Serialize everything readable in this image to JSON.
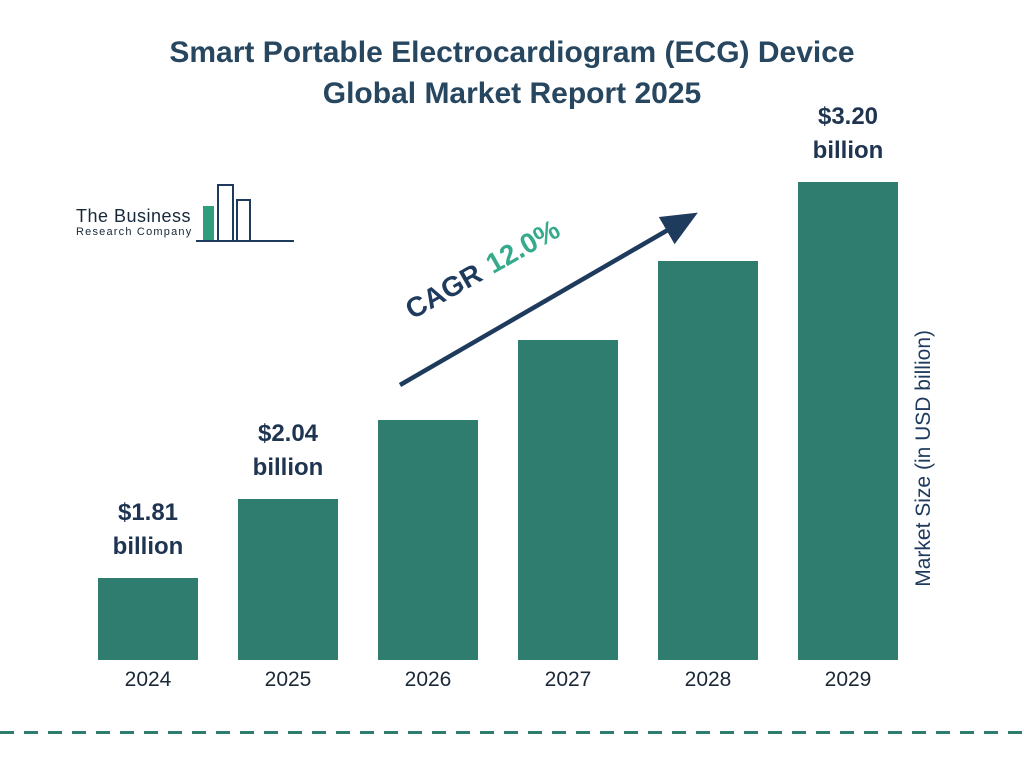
{
  "title": {
    "line1": "Smart Portable Electrocardiogram (ECG) Device",
    "line2": "Global Market Report 2025"
  },
  "logo": {
    "name_line1": "The Business",
    "name_line2": "Research Company"
  },
  "cagr": {
    "label": "CAGR",
    "value": "12.0%"
  },
  "axis": {
    "y_label": "Market Size (in USD billion)"
  },
  "chart_data": {
    "type": "bar",
    "title": "Smart Portable Electrocardiogram (ECG) Device Global Market Report 2025",
    "categories": [
      "2024",
      "2025",
      "2026",
      "2027",
      "2028",
      "2029"
    ],
    "values": [
      1.81,
      2.04,
      2.28,
      2.56,
      2.86,
      3.2
    ],
    "unit": "USD billion",
    "xlabel": "",
    "ylabel": "Market Size (in USD billion)",
    "cagr_percent": 12.0,
    "bar_color": "#2e7d6e",
    "grid": false,
    "legend": false,
    "value_labels": [
      {
        "index": 0,
        "category": "2024",
        "amount": "$1.81",
        "unit_word": "billion"
      },
      {
        "index": 1,
        "category": "2025",
        "amount": "$2.04",
        "unit_word": "billion"
      },
      {
        "index": 5,
        "category": "2029",
        "amount": "$3.20",
        "unit_word": "billion"
      }
    ]
  },
  "colors": {
    "bar": "#2e7d6e",
    "navy": "#1e3a5c",
    "title_text": "#27465f",
    "green_accent": "#35ab8c",
    "dashed_line": "#2e7d6e"
  }
}
